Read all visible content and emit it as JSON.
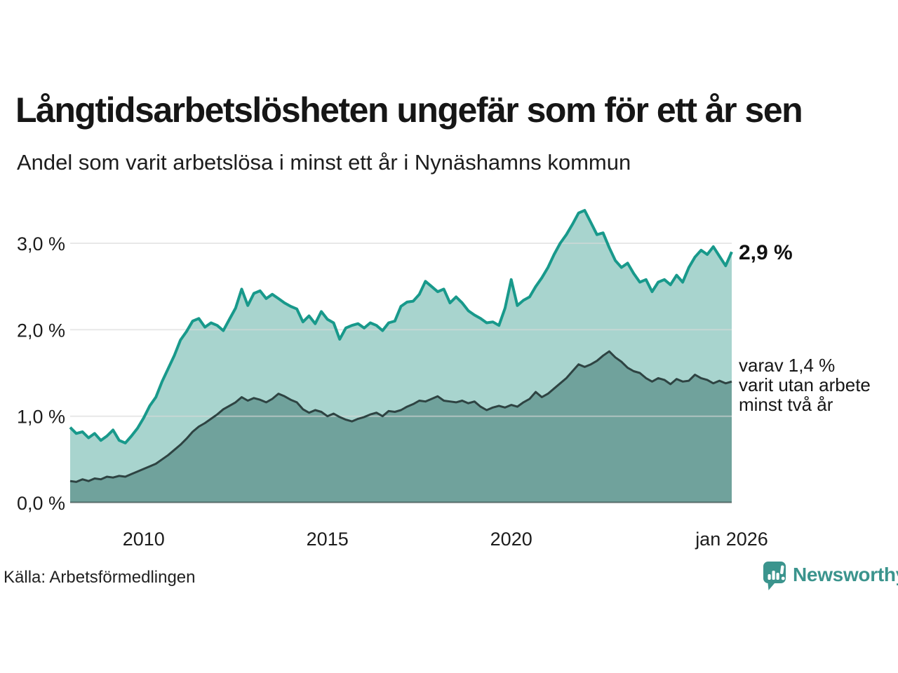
{
  "header": {
    "title": "Långtidsarbetslösheten ungefär som för ett år sen",
    "subtitle": "Andel som varit arbetslösa i minst ett år i Nynäshamns kommun"
  },
  "chart_data": {
    "type": "area",
    "title": "Långtidsarbetslösheten ungefär som för ett år sen",
    "subtitle": "Andel som varit arbetslösa i minst ett år i Nynäshamns kommun",
    "unit": "%",
    "x_start": 2008.0,
    "x_step": 0.1666667,
    "xlim": [
      2008,
      2026
    ],
    "ylim": [
      0,
      3.5
    ],
    "grid": true,
    "legend": "end-labels",
    "x_ticks": [
      {
        "year": 2010,
        "label": "2010"
      },
      {
        "year": 2015,
        "label": "2015"
      },
      {
        "year": 2020,
        "label": "2020"
      },
      {
        "year": 2026,
        "label": "jan 2026"
      }
    ],
    "y_ticks": [
      {
        "value": 0,
        "label": "0,0 %"
      },
      {
        "value": 1,
        "label": "1,0 %"
      },
      {
        "value": 2,
        "label": "2,0 %"
      },
      {
        "value": 3,
        "label": "3,0 %"
      }
    ],
    "series": [
      {
        "name": "arbetslösa minst ett år",
        "color": "#18998b",
        "fill": "#a8d4ce",
        "end_value": 2.9,
        "end_label": "2,9 %",
        "values": [
          0.87,
          0.8,
          0.82,
          0.75,
          0.8,
          0.72,
          0.77,
          0.84,
          0.72,
          0.69,
          0.77,
          0.86,
          0.98,
          1.12,
          1.22,
          1.4,
          1.55,
          1.7,
          1.88,
          1.98,
          2.1,
          2.13,
          2.03,
          2.08,
          2.05,
          1.99,
          2.12,
          2.25,
          2.47,
          2.28,
          2.42,
          2.45,
          2.36,
          2.41,
          2.36,
          2.31,
          2.27,
          2.24,
          2.09,
          2.16,
          2.07,
          2.21,
          2.12,
          2.08,
          1.89,
          2.02,
          2.05,
          2.07,
          2.02,
          2.08,
          2.05,
          1.99,
          2.08,
          2.1,
          2.27,
          2.32,
          2.33,
          2.41,
          2.56,
          2.5,
          2.44,
          2.47,
          2.31,
          2.38,
          2.31,
          2.22,
          2.17,
          2.13,
          2.08,
          2.09,
          2.05,
          2.25,
          2.58,
          2.28,
          2.34,
          2.38,
          2.5,
          2.6,
          2.72,
          2.87,
          3.0,
          3.1,
          3.22,
          3.35,
          3.38,
          3.24,
          3.1,
          3.12,
          2.95,
          2.8,
          2.72,
          2.77,
          2.65,
          2.55,
          2.58,
          2.44,
          2.55,
          2.58,
          2.52,
          2.63,
          2.55,
          2.72,
          2.84,
          2.92,
          2.87,
          2.96,
          2.85,
          2.74,
          2.9
        ]
      },
      {
        "name": "varav arbetslösa minst två år",
        "color": "#2e4342",
        "fill": "#70a29c",
        "end_value": 1.4,
        "end_label": "varav 1,4 % varit utan arbete minst två år",
        "values": [
          0.25,
          0.24,
          0.27,
          0.25,
          0.28,
          0.27,
          0.3,
          0.29,
          0.31,
          0.3,
          0.33,
          0.36,
          0.39,
          0.42,
          0.45,
          0.5,
          0.55,
          0.61,
          0.67,
          0.74,
          0.82,
          0.88,
          0.92,
          0.97,
          1.02,
          1.08,
          1.12,
          1.16,
          1.22,
          1.18,
          1.21,
          1.19,
          1.16,
          1.2,
          1.26,
          1.23,
          1.19,
          1.16,
          1.08,
          1.04,
          1.07,
          1.05,
          1.0,
          1.03,
          0.99,
          0.96,
          0.94,
          0.97,
          0.99,
          1.02,
          1.04,
          1.0,
          1.06,
          1.05,
          1.07,
          1.11,
          1.14,
          1.18,
          1.17,
          1.2,
          1.23,
          1.18,
          1.17,
          1.16,
          1.18,
          1.15,
          1.17,
          1.11,
          1.07,
          1.1,
          1.12,
          1.1,
          1.13,
          1.11,
          1.16,
          1.2,
          1.28,
          1.22,
          1.26,
          1.32,
          1.38,
          1.44,
          1.52,
          1.6,
          1.57,
          1.6,
          1.64,
          1.7,
          1.75,
          1.68,
          1.63,
          1.56,
          1.52,
          1.5,
          1.44,
          1.4,
          1.44,
          1.42,
          1.37,
          1.43,
          1.4,
          1.41,
          1.48,
          1.44,
          1.42,
          1.38,
          1.41,
          1.38,
          1.4
        ]
      }
    ]
  },
  "annotations": {
    "total_label": "2,9 %",
    "two_year_label": "varav 1,4 %\nvarit utan arbete\nminst två år"
  },
  "footer": {
    "source": "Källa: Arbetsförmedlingen",
    "brand": "Newsworthy"
  },
  "colors": {
    "line_total": "#18998b",
    "fill_total": "#a8d4ce",
    "line_two_years": "#2e4342",
    "fill_two_years": "#70a29c",
    "gridline": "#d9d9d9",
    "text": "#161616",
    "brand_teal": "#3b948d"
  }
}
